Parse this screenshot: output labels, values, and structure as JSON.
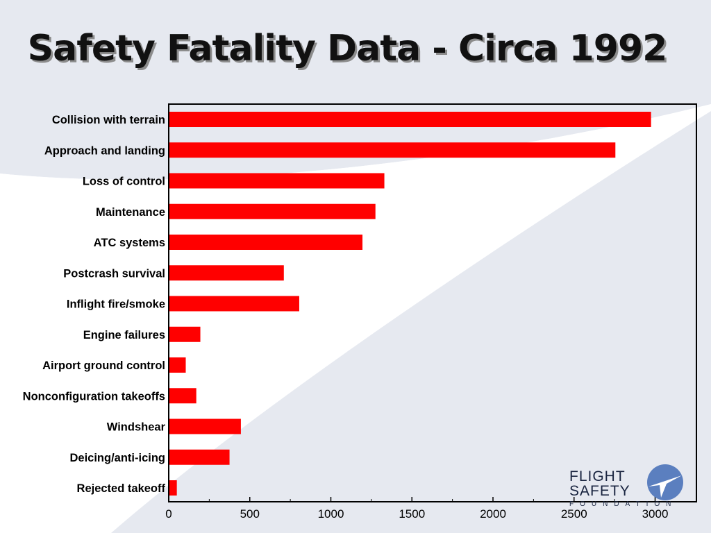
{
  "slide": {
    "title": "Safety Fatality Data - Circa 1992"
  },
  "colors": {
    "bar": "#ff0000",
    "background": "#e6e9f0",
    "swoosh": "#ffffff",
    "plot_border": "#000000",
    "logo_blue": "#5b7fbf"
  },
  "chart_data": {
    "type": "bar",
    "orientation": "horizontal",
    "categories": [
      "Collision with terrain",
      "Approach and landing",
      "Loss of control",
      "Maintenance",
      "ATC systems",
      "Postcrash survival",
      "Inflight fire/smoke",
      "Engine failures",
      "Airport ground control",
      "Nonconfiguration takeoffs",
      "Windshear",
      "Deicing/anti-icing",
      "Rejected takeoff"
    ],
    "values": [
      2975,
      2755,
      1330,
      1275,
      1195,
      710,
      805,
      195,
      105,
      170,
      445,
      375,
      50
    ],
    "title": "",
    "xlabel": "",
    "ylabel": "",
    "xlim": [
      0,
      3250
    ],
    "xticks": [
      0,
      500,
      1000,
      1500,
      2000,
      2500,
      3000
    ],
    "grid": false,
    "legend": "none"
  },
  "logo": {
    "line1": "FLIGHT",
    "line2": "SAFETY",
    "line3": "FOUNDATION",
    "icon": "plane-globe-icon"
  }
}
